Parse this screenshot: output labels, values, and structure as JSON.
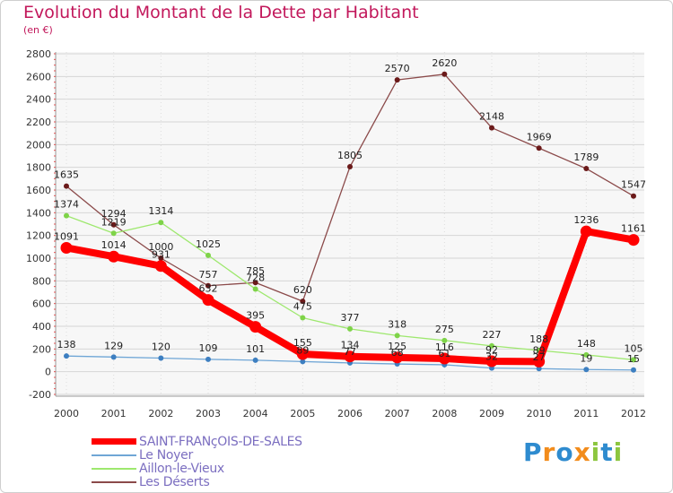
{
  "chart_data": {
    "type": "line",
    "title": "Evolution du Montant de la Dette par Habitant",
    "subtitle": "(en €)",
    "categories": [
      "2000",
      "2001",
      "2002",
      "2003",
      "2004",
      "2005",
      "2006",
      "2007",
      "2008",
      "2009",
      "2010",
      "2011",
      "2012"
    ],
    "ylim": [
      -200,
      2800
    ],
    "yticks": [
      -200,
      0,
      200,
      400,
      600,
      800,
      1000,
      1200,
      1400,
      1600,
      1800,
      2000,
      2200,
      2400,
      2600,
      2800
    ],
    "grid": true,
    "series": [
      {
        "name": "SAINT-FRANçOIS-DE-SALES",
        "color": "#ff0000",
        "marker": "#ff0000",
        "values": [
          1091,
          1014,
          931,
          632,
          395,
          155,
          134,
          125,
          116,
          92,
          89,
          1236,
          1161
        ]
      },
      {
        "name": "Le Noyer",
        "color": "#6fa6d6",
        "marker": "#3d7fc1",
        "values": [
          138,
          129,
          120,
          109,
          101,
          89,
          77,
          68,
          61,
          32,
          27,
          19,
          15
        ]
      },
      {
        "name": "Aillon-le-Vieux",
        "color": "#9ee86e",
        "marker": "#7ed348",
        "values": [
          1374,
          1219,
          1314,
          1025,
          728,
          475,
          377,
          318,
          275,
          227,
          188,
          148,
          105
        ]
      },
      {
        "name": "Les Déserts",
        "color": "#8b4a4a",
        "marker": "#6b1a1a",
        "values": [
          1635,
          1294,
          1000,
          757,
          785,
          620,
          1805,
          2570,
          2620,
          2148,
          1969,
          1789,
          1547
        ]
      }
    ]
  },
  "logo": {
    "text": "Proxiti",
    "letters": [
      "P",
      "r",
      "o",
      "x",
      "i",
      "t",
      "i"
    ],
    "colors": [
      "#2e8bcf",
      "#f28c1c",
      "#2e8bcf",
      "#f28c1c",
      "#8cc63f",
      "#2e8bcf",
      "#8cc63f"
    ]
  }
}
